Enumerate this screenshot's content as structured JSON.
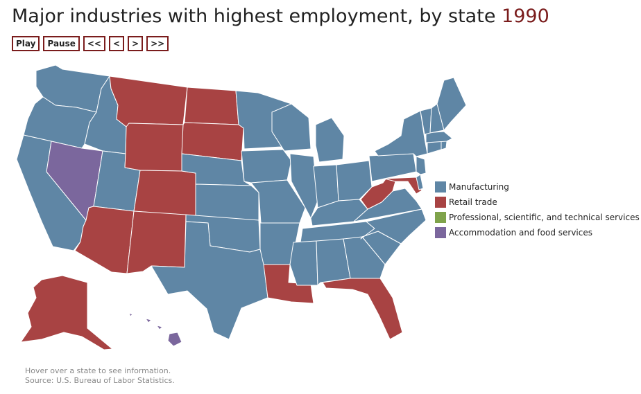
{
  "title": {
    "text": "Major industries with highest employment, by state",
    "year": "1990"
  },
  "controls": {
    "play": "Play",
    "pause": "Pause",
    "first": "<<",
    "prev": "<",
    "next": ">",
    "last": ">>"
  },
  "legend": [
    {
      "label": "Manufacturing",
      "color": "#5f86a5"
    },
    {
      "label": "Retail trade",
      "color": "#a84343"
    },
    {
      "label": "Professional, scientific, and technical services",
      "color": "#7fa34b"
    },
    {
      "label": "Accommodation and food services",
      "color": "#7b679d"
    }
  ],
  "map_data": {
    "year": "1990",
    "industry_by_state": {
      "Washington": "Manufacturing",
      "Oregon": "Manufacturing",
      "California": "Manufacturing",
      "Idaho": "Manufacturing",
      "Nevada": "Accommodation and food services",
      "Utah": "Manufacturing",
      "Arizona": "Retail trade",
      "Montana": "Retail trade",
      "Wyoming": "Retail trade",
      "Colorado": "Retail trade",
      "New Mexico": "Retail trade",
      "North Dakota": "Retail trade",
      "South Dakota": "Retail trade",
      "Nebraska": "Manufacturing",
      "Kansas": "Manufacturing",
      "Oklahoma": "Manufacturing",
      "Texas": "Manufacturing",
      "Minnesota": "Manufacturing",
      "Iowa": "Manufacturing",
      "Missouri": "Manufacturing",
      "Arkansas": "Manufacturing",
      "Louisiana": "Retail trade",
      "Wisconsin": "Manufacturing",
      "Illinois": "Manufacturing",
      "Michigan": "Manufacturing",
      "Indiana": "Manufacturing",
      "Ohio": "Manufacturing",
      "Kentucky": "Manufacturing",
      "Tennessee": "Manufacturing",
      "Mississippi": "Manufacturing",
      "Alabama": "Manufacturing",
      "Georgia": "Manufacturing",
      "Florida": "Retail trade",
      "South Carolina": "Manufacturing",
      "North Carolina": "Manufacturing",
      "Virginia": "Manufacturing",
      "West Virginia": "Retail trade",
      "Maryland": "Retail trade",
      "Delaware": "Manufacturing",
      "Pennsylvania": "Manufacturing",
      "New Jersey": "Manufacturing",
      "New York": "Manufacturing",
      "Connecticut": "Manufacturing",
      "Rhode Island": "Manufacturing",
      "Massachusetts": "Manufacturing",
      "Vermont": "Manufacturing",
      "New Hampshire": "Manufacturing",
      "Maine": "Manufacturing",
      "Alaska": "Retail trade",
      "Hawaii": "Accommodation and food services"
    }
  },
  "footer": {
    "hint": "Hover over a state to see information.",
    "source": "Source: U.S. Bureau of Labor Statistics."
  }
}
